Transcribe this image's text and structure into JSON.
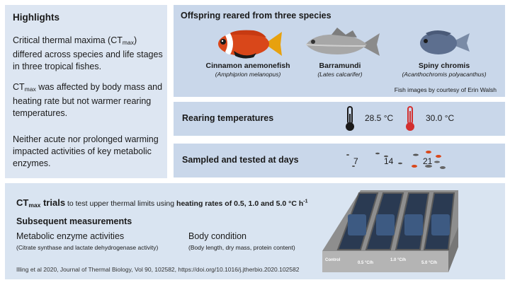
{
  "highlights": {
    "title": "Highlights",
    "p1_pre": "Critical thermal maxima (CT",
    "p1_sub": "max",
    "p1_post": ") differed across species and life stages in three tropical fishes.",
    "p2_pre": "CT",
    "p2_sub": "max",
    "p2_post": " was affected by body mass and heating rate but not warmer rearing temperatures.",
    "p3": "Neither acute nor prolonged warming impacted activities of key metabolic enzymes."
  },
  "offspring": {
    "title": "Offspring reared from three species",
    "fish": [
      {
        "common": "Cinnamon anemonefish",
        "scientific": "(Amphiprion melanopus)"
      },
      {
        "common": "Barramundi",
        "scientific": "(Lates calcarifer)"
      },
      {
        "common": "Spiny chromis",
        "scientific": "(Acanthochromis polyacanthus)"
      }
    ],
    "credit": "Fish images by courtesy of Erin Walsh"
  },
  "rearing": {
    "title": "Rearing temperatures",
    "temps": [
      "28.5 °C",
      "30.0 °C"
    ],
    "colors": {
      "cool": "#1a1a1a",
      "warm": "#d32f2f"
    }
  },
  "sampled": {
    "title": "Sampled and tested at days",
    "days": [
      "7",
      "14",
      "21"
    ]
  },
  "trials": {
    "ct_pre": "CT",
    "ct_sub": "max",
    "trials_word": " trials",
    "desc_pre": " to test upper thermal limits using ",
    "desc_bold": "heating rates of 0.5, 1.0 and 5.0 °C h",
    "desc_sup": "-1",
    "subsequent": "Subsequent measurements",
    "measurements": [
      {
        "title": "Metabolic enzyme activities",
        "detail": "(Citrate synthase and lactate dehydrogenase activity)"
      },
      {
        "title": "Body condition",
        "detail": "(Body length, dry mass, protein content)"
      }
    ],
    "citation": "Illing et al 2020, Journal of Thermal Biology, Vol 90, 102582, https://doi.org/10.1016/j.jtherbio.2020.102582",
    "tank_labels": [
      "Control",
      "0.5 °C/h",
      "1.0 °C/h",
      "5.0 °C/h"
    ]
  }
}
